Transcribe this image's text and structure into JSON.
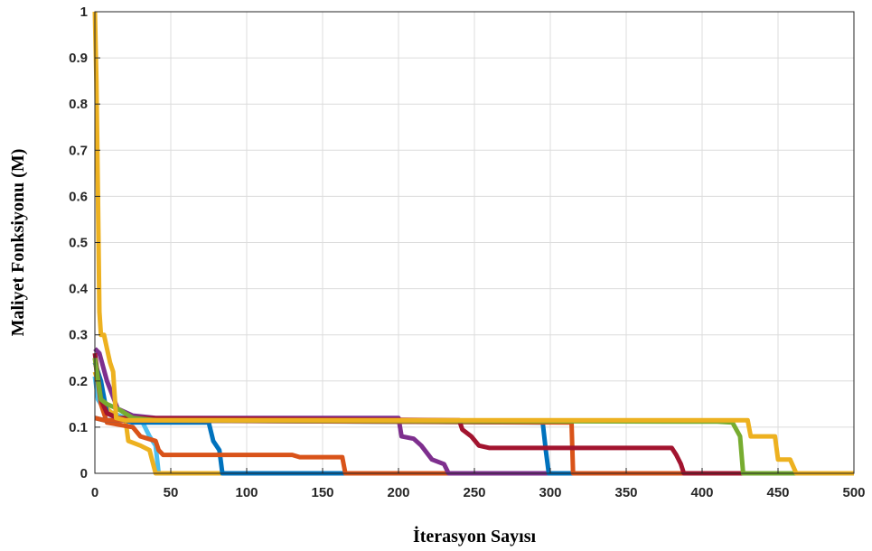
{
  "chart_data": {
    "type": "line",
    "xlabel": "İterasyon Sayısı",
    "ylabel": "Maliyet Fonksiyonu (M)",
    "xlim": [
      0,
      500
    ],
    "ylim": [
      0,
      1
    ],
    "xticks": [
      0,
      50,
      100,
      150,
      200,
      250,
      300,
      350,
      400,
      450,
      500
    ],
    "yticks": [
      0,
      0.1,
      0.2,
      0.3,
      0.4,
      0.5,
      0.6,
      0.7,
      0.8,
      0.9,
      1
    ],
    "xtick_labels": [
      "0",
      "50",
      "100",
      "150",
      "200",
      "250",
      "300",
      "350",
      "400",
      "450",
      "500"
    ],
    "ytick_labels": [
      "0",
      "0.1",
      "0.2",
      "0.3",
      "0.4",
      "0.5",
      "0.6",
      "0.7",
      "0.8",
      "0.9",
      "1"
    ],
    "grid": true,
    "series": [
      {
        "color": "#4dbeee",
        "points": [
          [
            0,
            0.21
          ],
          [
            2,
            0.16
          ],
          [
            6,
            0.14
          ],
          [
            12,
            0.13
          ],
          [
            20,
            0.12
          ],
          [
            30,
            0.12
          ],
          [
            36,
            0.08
          ],
          [
            40,
            0.06
          ],
          [
            42,
            0.0
          ],
          [
            500,
            0.0
          ]
        ]
      },
      {
        "color": "#edb120",
        "points": [
          [
            0,
            0.22
          ],
          [
            3,
            0.19
          ],
          [
            8,
            0.14
          ],
          [
            15,
            0.12
          ],
          [
            20,
            0.12
          ],
          [
            22,
            0.07
          ],
          [
            30,
            0.06
          ],
          [
            36,
            0.05
          ],
          [
            40,
            0.0
          ],
          [
            500,
            0.0
          ]
        ]
      },
      {
        "color": "#0072bd",
        "points": [
          [
            0,
            0.24
          ],
          [
            4,
            0.2
          ],
          [
            8,
            0.13
          ],
          [
            15,
            0.12
          ],
          [
            25,
            0.11
          ],
          [
            75,
            0.11
          ],
          [
            78,
            0.07
          ],
          [
            82,
            0.05
          ],
          [
            84,
            0.0
          ],
          [
            500,
            0.0
          ]
        ]
      },
      {
        "color": "#d95319",
        "points": [
          [
            0,
            0.25
          ],
          [
            4,
            0.15
          ],
          [
            8,
            0.11
          ],
          [
            25,
            0.1
          ],
          [
            30,
            0.08
          ],
          [
            40,
            0.07
          ],
          [
            42,
            0.05
          ],
          [
            45,
            0.04
          ],
          [
            130,
            0.04
          ],
          [
            135,
            0.035
          ],
          [
            163,
            0.035
          ],
          [
            165,
            0.0
          ],
          [
            500,
            0.0
          ]
        ]
      },
      {
        "color": "#7e2f8e",
        "points": [
          [
            0,
            0.27
          ],
          [
            3,
            0.26
          ],
          [
            8,
            0.2
          ],
          [
            15,
            0.14
          ],
          [
            25,
            0.125
          ],
          [
            40,
            0.12
          ],
          [
            200,
            0.12
          ],
          [
            202,
            0.08
          ],
          [
            210,
            0.075
          ],
          [
            215,
            0.06
          ],
          [
            222,
            0.03
          ],
          [
            230,
            0.02
          ],
          [
            233,
            0.0
          ],
          [
            500,
            0.0
          ]
        ]
      },
      {
        "color": "#0072bd",
        "points": [
          [
            0,
            0.12
          ],
          [
            6,
            0.115
          ],
          [
            295,
            0.11
          ],
          [
            297,
            0.05
          ],
          [
            299,
            0.0
          ],
          [
            500,
            0.0
          ]
        ]
      },
      {
        "color": "#d95319",
        "points": [
          [
            0,
            0.12
          ],
          [
            6,
            0.115
          ],
          [
            314,
            0.11
          ],
          [
            315,
            0.0
          ],
          [
            500,
            0.0
          ]
        ]
      },
      {
        "color": "#a2142f",
        "points": [
          [
            0,
            0.26
          ],
          [
            4,
            0.16
          ],
          [
            8,
            0.13
          ],
          [
            15,
            0.12
          ],
          [
            240,
            0.115
          ],
          [
            242,
            0.095
          ],
          [
            248,
            0.08
          ],
          [
            253,
            0.06
          ],
          [
            260,
            0.055
          ],
          [
            380,
            0.055
          ],
          [
            383,
            0.04
          ],
          [
            386,
            0.02
          ],
          [
            388,
            0.0
          ],
          [
            500,
            0.0
          ]
        ]
      },
      {
        "color": "#77ac30",
        "points": [
          [
            0,
            0.25
          ],
          [
            4,
            0.16
          ],
          [
            8,
            0.15
          ],
          [
            15,
            0.14
          ],
          [
            25,
            0.12
          ],
          [
            40,
            0.115
          ],
          [
            410,
            0.112
          ],
          [
            420,
            0.11
          ],
          [
            425,
            0.08
          ],
          [
            427,
            0.0
          ],
          [
            500,
            0.0
          ]
        ]
      },
      {
        "color": "#edb120",
        "points": [
          [
            0,
            1.0
          ],
          [
            1,
            0.85
          ],
          [
            2,
            0.6
          ],
          [
            3,
            0.35
          ],
          [
            4,
            0.3
          ],
          [
            6,
            0.3
          ],
          [
            8,
            0.27
          ],
          [
            10,
            0.24
          ],
          [
            12,
            0.22
          ],
          [
            14,
            0.12
          ],
          [
            20,
            0.115
          ],
          [
            430,
            0.115
          ],
          [
            432,
            0.08
          ],
          [
            448,
            0.08
          ],
          [
            450,
            0.03
          ],
          [
            458,
            0.03
          ],
          [
            462,
            0.0
          ],
          [
            500,
            0.0
          ]
        ]
      }
    ]
  }
}
